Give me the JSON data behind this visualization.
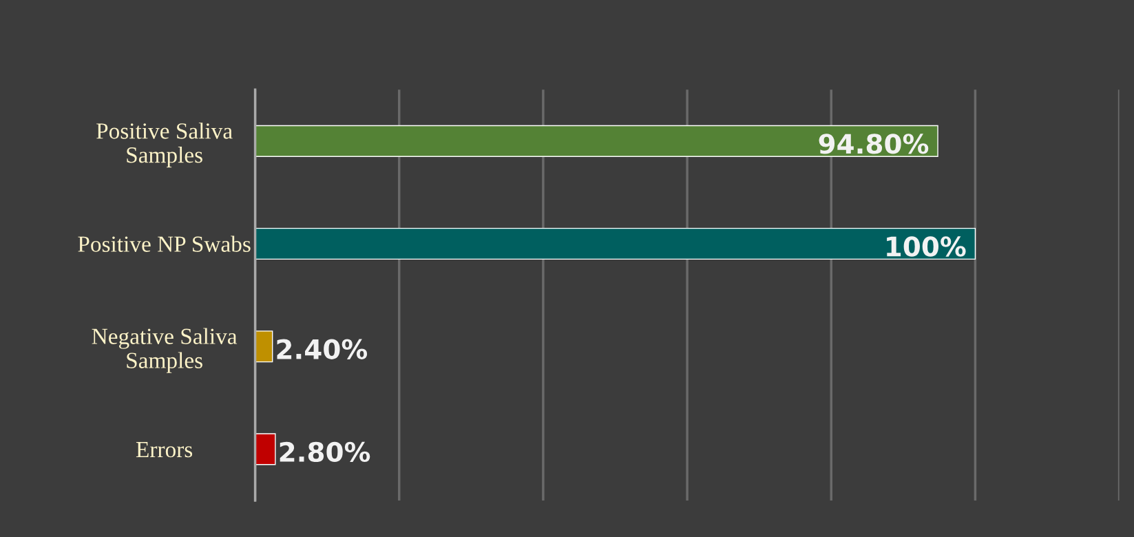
{
  "chart_data": {
    "type": "bar",
    "orientation": "horizontal",
    "categories": [
      "Positive Saliva\nSamples",
      "Positive NP Swabs",
      "Negative Saliva\nSamples",
      "Errors"
    ],
    "values": [
      94.8,
      100,
      2.4,
      2.8
    ],
    "colors": [
      "#548235",
      "#005f5f",
      "#bf9000",
      "#c00000"
    ],
    "value_labels": [
      "94.80%",
      "100%",
      "2.40%",
      "2.80%"
    ],
    "xlim": [
      0,
      120
    ],
    "xticks": [
      {
        "value": 0,
        "label": null
      },
      {
        "value": 20,
        "label": null
      },
      {
        "value": 40,
        "label": null
      },
      {
        "value": 60,
        "label": null
      },
      {
        "value": 80,
        "label": null
      },
      {
        "value": 100,
        "label": null
      },
      {
        "value": 120,
        "label": null
      }
    ],
    "grid": "x",
    "tick_labels": "y"
  }
}
